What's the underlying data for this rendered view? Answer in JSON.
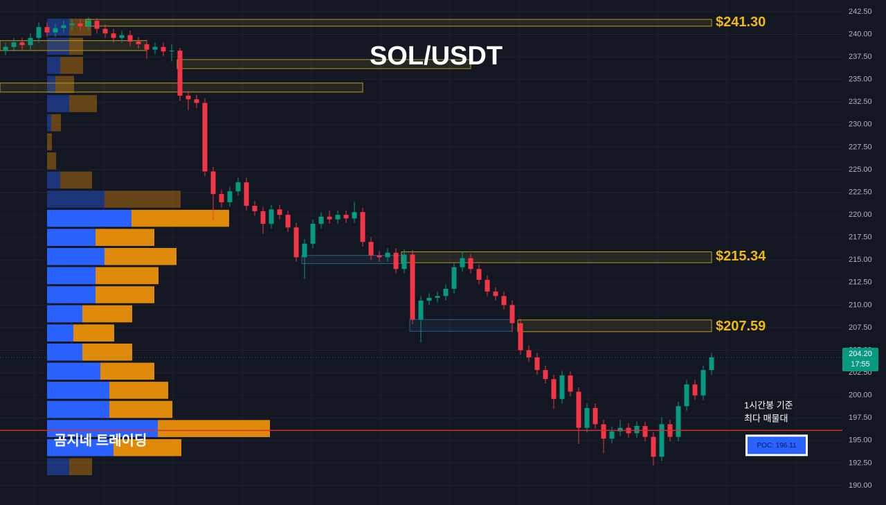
{
  "chart_data": {
    "type": "candlestick",
    "title": "SOL/USDT",
    "watermark": "곰지네 트레이딩",
    "ylim": [
      187.85,
      243.8
    ],
    "yticks": [
      {
        "value": 190,
        "label": "190.00"
      },
      {
        "value": 192.5,
        "label": "192.50"
      },
      {
        "value": 195,
        "label": "195.00"
      },
      {
        "value": 197.5,
        "label": "197.50"
      },
      {
        "value": 200,
        "label": "200.00"
      },
      {
        "value": 202.5,
        "label": "202.50"
      },
      {
        "value": 205,
        "label": "205.00"
      },
      {
        "value": 207.5,
        "label": "207.50"
      },
      {
        "value": 210,
        "label": "210.00"
      },
      {
        "value": 212.5,
        "label": "212.50"
      },
      {
        "value": 215,
        "label": "215.00"
      },
      {
        "value": 217.5,
        "label": "217.50"
      },
      {
        "value": 220,
        "label": "220.00"
      },
      {
        "value": 222.5,
        "label": "222.50"
      },
      {
        "value": 225,
        "label": "225.00"
      },
      {
        "value": 227.5,
        "label": "227.50"
      },
      {
        "value": 230,
        "label": "230.00"
      },
      {
        "value": 232.5,
        "label": "232.50"
      },
      {
        "value": 235,
        "label": "235.00"
      },
      {
        "value": 237.5,
        "label": "237.50"
      },
      {
        "value": 240,
        "label": "240.00"
      },
      {
        "value": 242.5,
        "label": "242.50"
      }
    ],
    "grid": true,
    "up_color": "#089981",
    "down_color": "#f23645",
    "open": [
      238.2,
      238.6,
      239.1,
      238.8,
      239.6,
      240.8,
      240.2,
      240.7,
      241.0,
      241.2,
      240.9,
      241.5,
      240.6,
      240.1,
      239.6,
      239.9,
      239.2,
      238.9,
      238.3,
      238.6,
      238.1,
      238.2,
      233.2,
      232.8,
      232.4,
      224.8,
      222.3,
      221.4,
      222.6,
      223.6,
      221.0,
      220.4,
      219.0,
      220.6,
      220.0,
      218.6,
      215.3,
      216.8,
      219.0,
      219.8,
      219.5,
      220.0,
      219.6,
      220.3,
      217.0,
      215.5,
      215.3,
      215.8,
      214.0,
      215.6,
      208.4,
      210.5,
      210.8,
      211.0,
      211.8,
      214.2,
      215.2,
      214.0,
      212.8,
      211.5,
      211.0,
      210.0,
      208.0,
      205.0,
      204.2,
      202.8,
      201.8,
      199.6,
      202.2,
      200.4,
      196.4,
      198.6,
      196.8,
      195.2,
      196.0,
      196.4,
      195.8,
      196.6,
      195.4,
      193.2,
      196.8,
      195.4,
      198.8,
      201.2,
      200.0,
      202.8
    ],
    "high": [
      239.1,
      239.6,
      239.6,
      240.1,
      241.3,
      241.3,
      241.2,
      241.5,
      241.7,
      241.7,
      241.9,
      241.8,
      241.1,
      240.6,
      240.4,
      240.4,
      239.7,
      239.4,
      239.1,
      239.1,
      238.9,
      238.5,
      233.7,
      233.3,
      232.9,
      225.3,
      222.8,
      223.1,
      224.1,
      224.1,
      221.5,
      220.9,
      221.1,
      221.1,
      220.5,
      219.1,
      217.3,
      219.5,
      220.3,
      220.5,
      220.5,
      220.5,
      221.4,
      220.8,
      217.5,
      216.0,
      216.3,
      216.3,
      216.2,
      216.1,
      211.0,
      211.3,
      211.5,
      212.3,
      214.7,
      215.9,
      215.7,
      214.5,
      213.3,
      212.0,
      211.5,
      210.5,
      208.5,
      205.5,
      204.7,
      203.3,
      202.3,
      202.7,
      202.7,
      200.9,
      199.1,
      199.1,
      197.3,
      196.5,
      197.3,
      196.9,
      197.1,
      197.1,
      195.9,
      197.6,
      197.3,
      199.3,
      201.7,
      201.7,
      203.3,
      204.7
    ],
    "low": [
      237.7,
      238.1,
      238.3,
      238.3,
      239.1,
      239.7,
      239.7,
      240.2,
      240.5,
      240.4,
      240.4,
      240.1,
      239.6,
      239.1,
      239.1,
      238.7,
      238.4,
      237.3,
      237.8,
      237.6,
      237.0,
      232.6,
      231.6,
      231.8,
      224.3,
      219.4,
      220.8,
      220.9,
      222.1,
      220.5,
      219.9,
      217.9,
      218.5,
      219.5,
      218.1,
      214.8,
      212.9,
      216.3,
      218.5,
      219.0,
      219.0,
      219.1,
      219.1,
      216.5,
      215.0,
      214.8,
      214.8,
      213.5,
      213.5,
      207.9,
      205.9,
      210.0,
      210.3,
      210.5,
      211.3,
      213.7,
      213.5,
      212.3,
      211.0,
      210.5,
      209.5,
      207.0,
      204.5,
      203.7,
      202.3,
      201.3,
      198.5,
      199.1,
      199.9,
      194.6,
      195.9,
      196.3,
      193.6,
      194.7,
      195.5,
      195.3,
      195.3,
      194.9,
      192.2,
      192.7,
      194.9,
      194.9,
      198.3,
      199.5,
      199.5,
      202.3
    ],
    "close": [
      238.6,
      239.1,
      238.8,
      239.6,
      240.8,
      240.2,
      240.7,
      241.0,
      241.2,
      240.9,
      241.5,
      240.6,
      240.1,
      239.6,
      239.9,
      239.2,
      238.9,
      238.3,
      238.6,
      238.1,
      238.2,
      233.2,
      232.8,
      232.4,
      224.8,
      222.3,
      221.4,
      222.6,
      223.6,
      221.0,
      220.4,
      219.0,
      220.6,
      220.0,
      218.6,
      215.3,
      216.8,
      219.0,
      219.8,
      219.5,
      220.0,
      219.6,
      220.3,
      217.0,
      215.5,
      215.3,
      215.8,
      214.0,
      215.6,
      208.4,
      210.5,
      210.8,
      211.0,
      211.8,
      214.2,
      215.2,
      214.0,
      212.8,
      211.5,
      211.0,
      210.0,
      208.0,
      205.0,
      204.2,
      202.8,
      201.8,
      199.6,
      202.2,
      200.4,
      196.4,
      198.6,
      196.8,
      195.2,
      196.0,
      196.4,
      195.8,
      196.6,
      195.4,
      193.2,
      196.8,
      195.4,
      198.8,
      201.2,
      200.0,
      202.8,
      204.2
    ],
    "volume_profile": {
      "bins": [
        241.85,
        239.73,
        237.61,
        235.5,
        233.38,
        231.26,
        229.14,
        227.03,
        224.91,
        222.79,
        220.67,
        218.56,
        216.44,
        214.32,
        212.2,
        210.09,
        207.97,
        205.85,
        203.73,
        201.62,
        199.5,
        197.38,
        195.26,
        193.15,
        191.03
      ],
      "buy": [
        32,
        32,
        19,
        12,
        32,
        6,
        0,
        0,
        19,
        83,
        122,
        70,
        83,
        70,
        70,
        51,
        38,
        51,
        77,
        90,
        90,
        160,
        96,
        32
      ],
      "sell": [
        32,
        20,
        33,
        27,
        40,
        14,
        7,
        13,
        46,
        110,
        141,
        85,
        104,
        91,
        85,
        72,
        59,
        72,
        78,
        85,
        91,
        162,
        98,
        33
      ],
      "value_area": [
        false,
        false,
        false,
        false,
        false,
        false,
        false,
        false,
        false,
        false,
        true,
        true,
        true,
        true,
        true,
        true,
        true,
        true,
        true,
        true,
        true,
        true,
        true,
        false
      ],
      "buy_color": "#2962ff",
      "sell_color": "#e08a0b"
    },
    "zones": [
      {
        "label": "$241.30",
        "value": 241.3,
        "high": 241.65,
        "low": 240.9,
        "start": 10,
        "end": 85,
        "color": "#b59a2a"
      },
      {
        "high": 239.3,
        "low": 238.2,
        "start": 0,
        "end": 17,
        "color": "#b59a2a"
      },
      {
        "high": 237.2,
        "low": 236.2,
        "start": 21,
        "end": 56,
        "color": "#b59a2a"
      },
      {
        "high": 234.6,
        "low": 233.6,
        "start": 0,
        "end": 43,
        "color": "#b59a2a"
      },
      {
        "label": "$215.34",
        "value": 215.34,
        "high": 215.9,
        "low": 214.7,
        "start": 48,
        "end": 85,
        "color": "#b59a2a"
      },
      {
        "high": 215.5,
        "low": 214.6,
        "start": 36,
        "end": 48,
        "color": "#2f5f8a"
      },
      {
        "label": "$207.59",
        "value": 207.59,
        "high": 208.35,
        "low": 207.05,
        "start": 62,
        "end": 85,
        "color": "#b59a2a"
      },
      {
        "high": 208.4,
        "low": 207.1,
        "start": 49,
        "end": 61,
        "color": "#2f5f8a"
      }
    ],
    "last_price": {
      "value": 204.2,
      "label": "204.20",
      "time": "17:55",
      "color": "#089981"
    },
    "poc": {
      "value": 196.11,
      "label": "POC: 196.11",
      "color": "#d32f2f"
    },
    "annotation": [
      "1시간봉 기준",
      "최다 매물대"
    ]
  }
}
